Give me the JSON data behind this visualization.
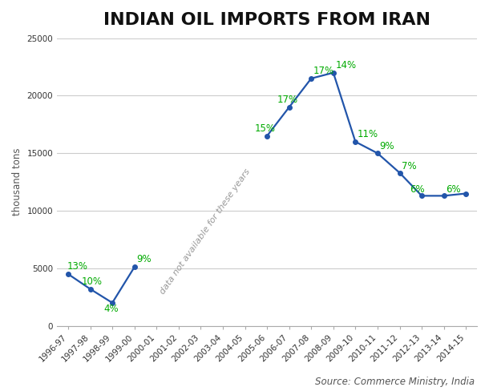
{
  "title": "INDIAN OIL IMPORTS FROM IRAN",
  "ylabel": "thousand tons",
  "source": "Source: Commerce Ministry, India",
  "all_labels": [
    "1996-97",
    "1997-98",
    "1998-99",
    "1999-00",
    "2000-01",
    "2001-02",
    "2002-03",
    "2003-04",
    "2004-05",
    "2005-06",
    "2006-07",
    "2007-08",
    "2008-09",
    "2009-10",
    "2010-11",
    "2011-12",
    "2012-13",
    "2013-14",
    "2014-15"
  ],
  "data_x_indices": [
    0,
    1,
    2,
    3,
    9,
    10,
    11,
    12,
    13,
    14,
    15,
    16,
    17,
    18
  ],
  "data_y": [
    4500,
    3200,
    2000,
    5100,
    16500,
    19000,
    21500,
    22000,
    16000,
    15000,
    13300,
    11300,
    11300,
    11500
  ],
  "pct_labels": [
    "13%",
    "10%",
    "4%",
    "9%",
    "15%",
    "17%",
    "17%",
    "14%",
    "11%",
    "9%",
    "7%",
    "6%",
    "6%"
  ],
  "pct_x_indices": [
    0,
    1,
    2,
    3,
    9,
    10,
    11,
    12,
    13,
    14,
    15,
    16,
    17
  ],
  "line_color": "#2255AA",
  "pct_color": "#00AA00",
  "marker": "o",
  "marker_size": 4,
  "ylim": [
    0,
    25000
  ],
  "yticks": [
    0,
    5000,
    10000,
    15000,
    20000,
    25000
  ],
  "grid_color": "#cccccc",
  "bg_color": "#ffffff",
  "title_fontsize": 16,
  "label_fontsize": 8.5,
  "tick_fontsize": 7.5,
  "source_fontsize": 8.5,
  "no_data_text": "data not available for these years",
  "no_data_rotation": 55,
  "no_data_color": "#999999",
  "no_data_fontsize": 8
}
